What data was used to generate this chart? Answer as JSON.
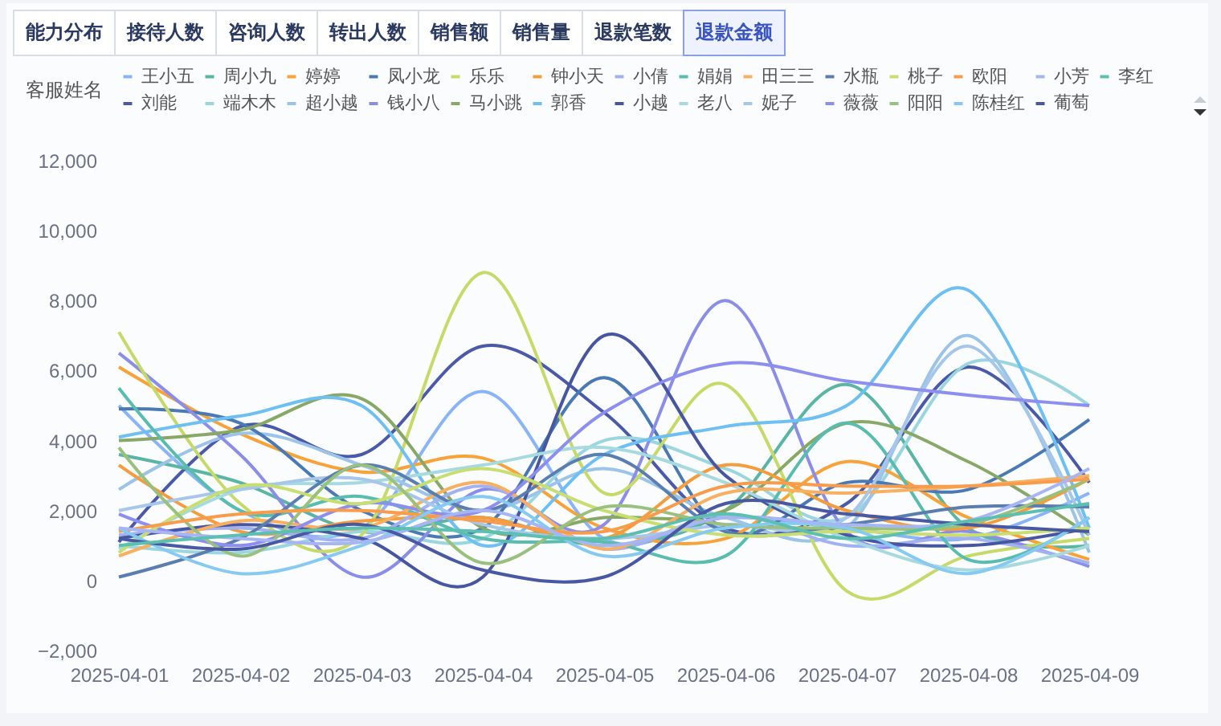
{
  "chart_data": {
    "type": "line",
    "legend_title": "客服姓名",
    "legend": "top",
    "annotations": [
      "能力分布",
      "接待人数",
      "咨询人数",
      "转出人数",
      "销售额",
      "销售量",
      "退款笔数",
      "退款金额"
    ],
    "categories": [
      "2025-04-01",
      "2025-04-02",
      "2025-04-03",
      "2025-04-04",
      "2025-04-05",
      "2025-04-06",
      "2025-04-07",
      "2025-04-08",
      "2025-04-09"
    ],
    "ylim": [
      -2000,
      12000
    ],
    "yticks": [
      {
        "value": -2000,
        "label": "−2,000"
      },
      0,
      {
        "value": 2000,
        "label": "2,000"
      },
      {
        "value": 4000,
        "label": "4,000"
      },
      {
        "value": 6000,
        "label": "6,000"
      },
      {
        "value": 8000,
        "label": "8,000"
      },
      {
        "value": 10000,
        "label": "10,000"
      },
      {
        "value": 12000,
        "label": "12,000"
      }
    ],
    "marker": "none",
    "line_style": "solid",
    "series": [
      {
        "name": "王小五",
        "color": "#8ab4f8",
        "values": [
          5000,
          2000,
          1500,
          5400,
          1200,
          1800,
          1500,
          1200,
          2500
        ]
      },
      {
        "name": "刘能",
        "color": "#4a5aa8",
        "values": [
          1100,
          4400,
          3600,
          6700,
          4800,
          1500,
          2200,
          6100,
          2800
        ]
      },
      {
        "name": "周小九",
        "color": "#5ab5a5",
        "values": [
          3600,
          2800,
          1400,
          1800,
          1000,
          2000,
          5600,
          1500,
          1000
        ]
      },
      {
        "name": "端木木",
        "color": "#9ad6de",
        "values": [
          1000,
          800,
          1400,
          1200,
          4000,
          3200,
          1800,
          6200,
          5000
        ]
      },
      {
        "name": "婷婷",
        "color": "#f8a238",
        "values": [
          6100,
          4200,
          3100,
          3500,
          1500,
          1200,
          3400,
          1800,
          600
        ]
      },
      {
        "name": "超小越",
        "color": "#9cc4e8",
        "values": [
          2600,
          4200,
          3300,
          2000,
          3200,
          1800,
          1500,
          7000,
          800
        ]
      },
      {
        "name": "凤小龙",
        "color": "#4a7ab4",
        "values": [
          4900,
          4500,
          2000,
          1500,
          5800,
          1400,
          2800,
          2600,
          4600
        ]
      },
      {
        "name": "钱小八",
        "color": "#8a8ee8",
        "values": [
          6500,
          3600,
          100,
          2600,
          1600,
          8000,
          1400,
          1400,
          400
        ]
      },
      {
        "name": "乐乐",
        "color": "#c6da68",
        "values": [
          7100,
          2200,
          1300,
          8800,
          2500,
          5600,
          -300,
          700,
          1200
        ]
      },
      {
        "name": "马小跳",
        "color": "#88a866",
        "values": [
          4000,
          4300,
          5200,
          1500,
          1800,
          2000,
          4500,
          3400,
          1300
        ]
      },
      {
        "name": "钟小天",
        "color": "#f59c3c",
        "values": [
          3300,
          1400,
          1700,
          1800,
          1200,
          3300,
          2000,
          1500,
          2900
        ]
      },
      {
        "name": "郭香",
        "color": "#6ec0f2",
        "values": [
          4100,
          4700,
          5000,
          1000,
          3600,
          4400,
          5000,
          8300,
          1500
        ]
      },
      {
        "name": "小倩",
        "color": "#a2b2f0",
        "values": [
          1300,
          1500,
          1200,
          2700,
          900,
          1900,
          1000,
          1200,
          500
        ]
      },
      {
        "name": "小越",
        "color": "#4656a0",
        "values": [
          1200,
          1600,
          1200,
          100,
          7000,
          3000,
          1300,
          1000,
          1500
        ]
      },
      {
        "name": "娟娟",
        "color": "#58bcae",
        "values": [
          5500,
          2000,
          2400,
          1200,
          1100,
          700,
          4500,
          600,
          1800
        ]
      },
      {
        "name": "老八",
        "color": "#a6dade",
        "values": [
          900,
          2600,
          2800,
          3300,
          3800,
          2800,
          1200,
          300,
          1000
        ]
      },
      {
        "name": "田三三",
        "color": "#f8b060",
        "values": [
          700,
          1700,
          1500,
          2800,
          900,
          2500,
          2500,
          2700,
          3000
        ]
      },
      {
        "name": "妮子",
        "color": "#a6c6ea",
        "values": [
          2000,
          2600,
          2900,
          1600,
          1200,
          1600,
          1800,
          6700,
          1300
        ]
      },
      {
        "name": "水瓶",
        "color": "#5a7eb0",
        "values": [
          100,
          1200,
          3300,
          2000,
          3600,
          1400,
          1600,
          2100,
          2100
        ]
      },
      {
        "name": "薇薇",
        "color": "#8c8ef0",
        "values": [
          1900,
          1000,
          2200,
          2000,
          4800,
          6200,
          5700,
          5300,
          5000
        ]
      },
      {
        "name": "桃子",
        "color": "#c8de70",
        "values": [
          800,
          2700,
          2200,
          3200,
          2000,
          1300,
          1400,
          1300,
          1500
        ]
      },
      {
        "name": "阳阳",
        "color": "#9ac07e",
        "values": [
          3800,
          700,
          3300,
          500,
          2100,
          1600,
          1500,
          1600,
          2900
        ]
      },
      {
        "name": "欧阳",
        "color": "#f89c4c",
        "values": [
          1400,
          1900,
          2000,
          1700,
          1400,
          2700,
          2700,
          2700,
          2900
        ]
      },
      {
        "name": "陈桂红",
        "color": "#86caf2",
        "values": [
          1500,
          200,
          1000,
          2400,
          700,
          1500,
          1500,
          200,
          1800
        ]
      },
      {
        "name": "小芳",
        "color": "#a6b6f2",
        "values": [
          1500,
          1200,
          1100,
          2000,
          1000,
          1800,
          1600,
          1700,
          3200
        ]
      },
      {
        "name": "葡萄",
        "color": "#4858a2",
        "values": [
          1200,
          900,
          1600,
          300,
          100,
          2200,
          1900,
          1600,
          1400
        ]
      },
      {
        "name": "李红",
        "color": "#5cc0b0",
        "values": [
          1000,
          1300,
          1500,
          1400,
          1200,
          1900,
          1200,
          1700,
          2200
        ]
      }
    ]
  }
}
